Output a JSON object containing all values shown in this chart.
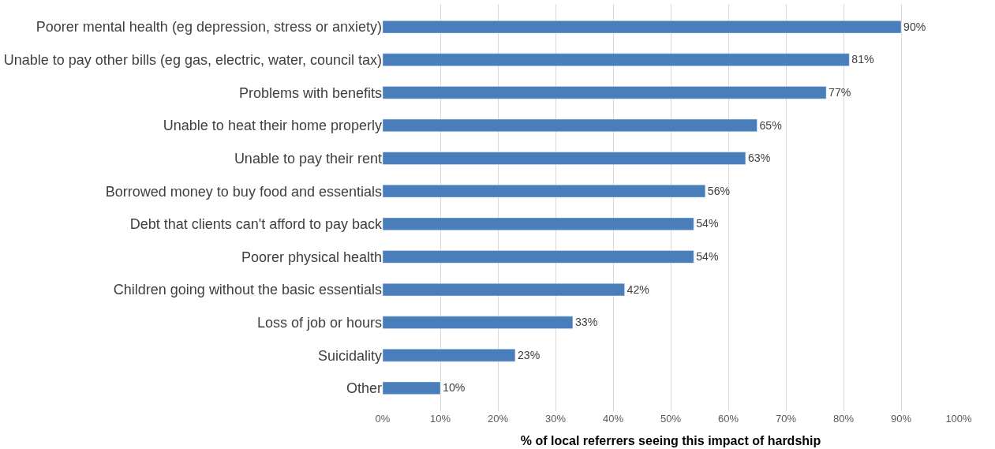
{
  "chart_data": {
    "type": "bar",
    "orientation": "horizontal",
    "xlabel": "% of local referrers seeing this impact of hardship",
    "categories": [
      "Poorer mental health (eg depression, stress or anxiety)",
      "Unable to pay other bills (eg gas, electric, water, council tax)",
      "Problems with benefits",
      "Unable to heat their home properly",
      "Unable to pay their rent",
      "Borrowed money to buy food and essentials",
      "Debt that clients can't afford to pay back",
      "Poorer physical health",
      "Children going without the basic essentials",
      "Loss of job or hours",
      "Suicidality",
      "Other"
    ],
    "values": [
      90,
      81,
      77,
      65,
      63,
      56,
      54,
      54,
      42,
      33,
      23,
      10
    ],
    "value_labels": [
      "90%",
      "81%",
      "77%",
      "65%",
      "63%",
      "56%",
      "54%",
      "54%",
      "42%",
      "33%",
      "23%",
      "10%"
    ],
    "color": "#4a7ebb",
    "xlim": [
      0,
      100
    ],
    "xticks": [
      {
        "value": 0,
        "label": "0%"
      },
      {
        "value": 10,
        "label": "10%"
      },
      {
        "value": 20,
        "label": "20%"
      },
      {
        "value": 30,
        "label": "30%"
      },
      {
        "value": 40,
        "label": "40%"
      },
      {
        "value": 50,
        "label": "50%"
      },
      {
        "value": 60,
        "label": "60%"
      },
      {
        "value": 70,
        "label": "70%"
      },
      {
        "value": 80,
        "label": "80%"
      },
      {
        "value": 90,
        "label": "90%"
      },
      {
        "value": 100,
        "label": "100%"
      }
    ],
    "grid": "x"
  }
}
